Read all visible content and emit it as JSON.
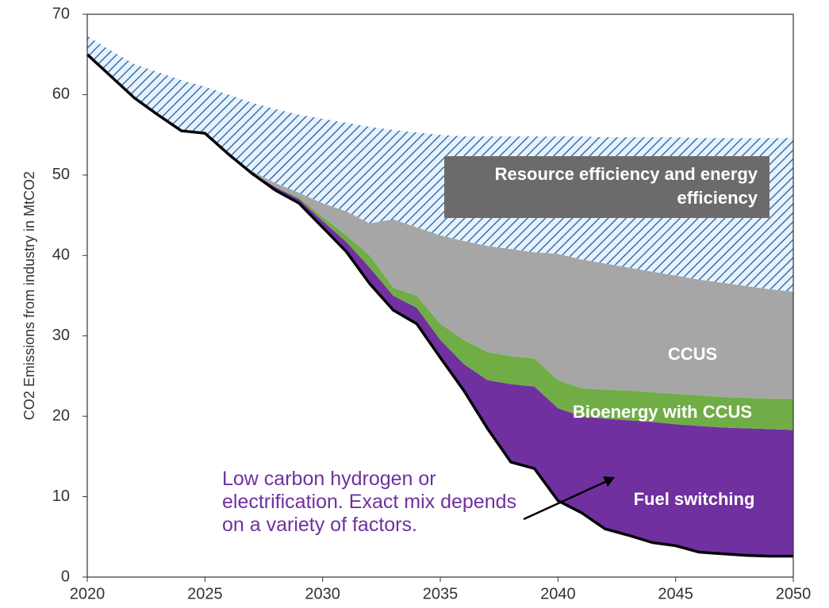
{
  "chart_data": {
    "type": "area",
    "y_label": "CO2 Emissions from industry in MtCO2",
    "annotation": "Low carbon hydrogen or electrification. Exact mix depends on a variety of factors.",
    "x": [
      2020,
      2021,
      2022,
      2023,
      2024,
      2025,
      2026,
      2027,
      2028,
      2029,
      2030,
      2031,
      2032,
      2033,
      2034,
      2035,
      2036,
      2037,
      2038,
      2039,
      2040,
      2041,
      2042,
      2043,
      2044,
      2045,
      2046,
      2047,
      2048,
      2049,
      2050
    ],
    "stacked": true,
    "series": [
      {
        "color": "#000000",
        "values": [
          65,
          62.3,
          59.6,
          57.5,
          55.5,
          55.2,
          52.6,
          50.2,
          48.1,
          46.5,
          43.5,
          40.5,
          36.5,
          33.2,
          31.5,
          27.3,
          23.2,
          18.5,
          14.3,
          13.5,
          9.5,
          8,
          6,
          5.2,
          4.3,
          3.9,
          3.1,
          2.9,
          2.7,
          2.6,
          2.6
        ]
      },
      {
        "name": "Fuel switching",
        "color": "#7030a0",
        "values": [
          0,
          0,
          0,
          0,
          0,
          0,
          0,
          0.1,
          0.4,
          0.5,
          0.8,
          1.2,
          2.0,
          1.8,
          2.0,
          2.2,
          3.3,
          6.0,
          9.7,
          10.2,
          11.5,
          12,
          13.7,
          14.3,
          15,
          15.1,
          15.7,
          15.7,
          15.8,
          15.8,
          15.7
        ]
      },
      {
        "name": "Bioenergy with CCUS",
        "color": "#70ad47",
        "values": [
          0,
          0,
          0,
          0,
          0,
          0,
          0,
          0,
          0,
          0.2,
          0.5,
          0.8,
          1.5,
          1.0,
          1.5,
          2.0,
          3.0,
          3.5,
          3.5,
          3.5,
          3.5,
          3.5,
          3.6,
          3.7,
          3.7,
          3.8,
          3.8,
          3.8,
          3.8,
          3.8,
          3.9
        ]
      },
      {
        "name": "CCUS",
        "color": "#a6a6a6",
        "values": [
          0,
          0,
          0,
          0,
          0,
          0,
          0,
          0.2,
          0.5,
          0.6,
          1.7,
          3.0,
          4.0,
          8.5,
          8.5,
          11,
          12.3,
          13.2,
          13.3,
          13.2,
          15.7,
          16,
          15.7,
          15.3,
          15,
          14.7,
          14.4,
          14.2,
          13.9,
          13.6,
          13.3
        ]
      },
      {
        "name": "Resource efficiency and energy efficiency",
        "color": "#2e75b6",
        "values": [
          2.3,
          3.2,
          4.2,
          5.3,
          6.3,
          5.8,
          7.4,
          8.5,
          9.2,
          9.7,
          10.5,
          11,
          12,
          11.1,
          11.8,
          12.5,
          13,
          13.6,
          14,
          14.4,
          14.6,
          15.3,
          15.7,
          16.2,
          16.7,
          17.2,
          17.6,
          18,
          18.4,
          18.8,
          19.1
        ]
      }
    ],
    "xlim": [
      2020,
      2050
    ],
    "xticks": [
      2020,
      2025,
      2030,
      2035,
      2040,
      2045,
      2050
    ],
    "ylim": [
      0,
      70
    ],
    "yticks": [
      0,
      10,
      20,
      30,
      40,
      50,
      60,
      70
    ]
  }
}
